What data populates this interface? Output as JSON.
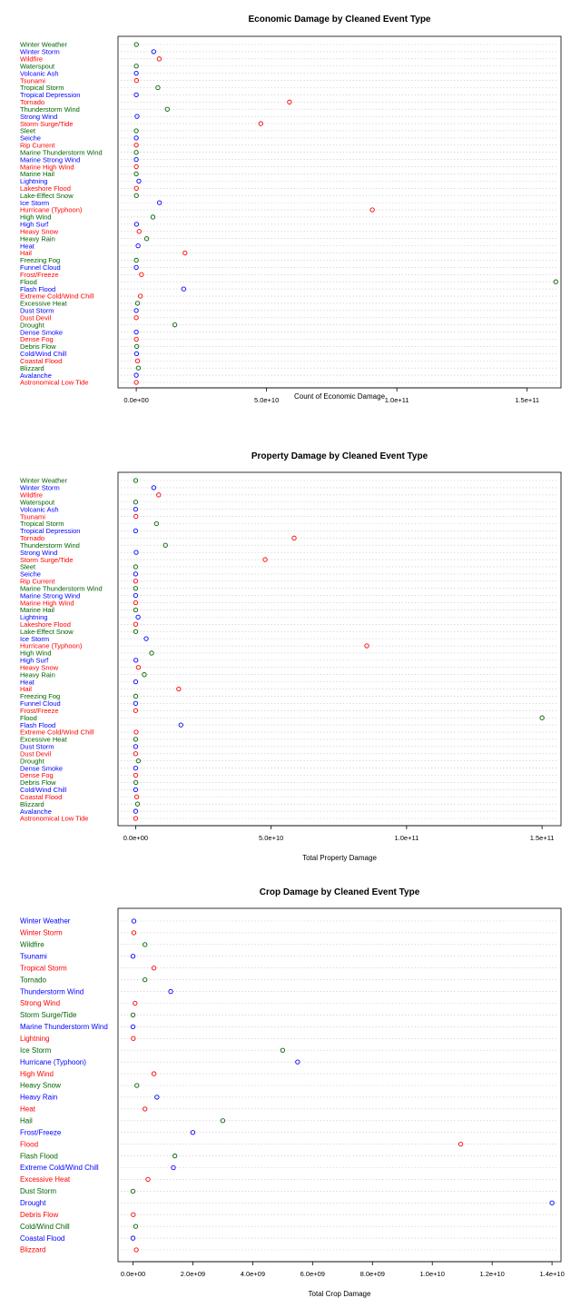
{
  "colors": {
    "green": "#006400",
    "blue": "#0000ff",
    "red": "#ff0000",
    "grid": "#bbbbbb",
    "frame": "#000000"
  },
  "chart_data": [
    {
      "type": "scatter",
      "subtype": "dotchart",
      "title": "Economic Damage by Cleaned Event Type",
      "xlabel": "Count of Economic Damage",
      "ylabel": "",
      "xlim": [
        -7000000000,
        163000000000
      ],
      "xticks": [
        0,
        50000000000,
        100000000000,
        150000000000
      ],
      "xtick_labels": [
        "0.0e+00",
        "5.0e+10",
        "1.0e+11",
        "1.5e+11"
      ],
      "grid": true,
      "legend": "none",
      "label_color_cycle": [
        "green",
        "blue",
        "red"
      ],
      "categories": [
        "Winter Weather",
        "Winter Storm",
        "Wildfire",
        "Waterspout",
        "Volcanic Ash",
        "Tsunami",
        "Tropical Storm",
        "Tropical Depression",
        "Tornado",
        "Thunderstorm Wind",
        "Strong Wind",
        "Storm Surge/Tide",
        "Sleet",
        "Seiche",
        "Rip Current",
        "Marine Thunderstorm Wind",
        "Marine Strong Wind",
        "Marine High Wind",
        "Marine Hail",
        "Lightning",
        "Lakeshore Flood",
        "Lake-Effect Snow",
        "Ice Storm",
        "Hurricane (Typhoon)",
        "High Wind",
        "High Surf",
        "Heavy Snow",
        "Heavy Rain",
        "Heat",
        "Hail",
        "Freezing Fog",
        "Funnel Cloud",
        "Frost/Freeze",
        "Flood",
        "Flash Flood",
        "Extreme Cold/Wind Chill",
        "Excessive Heat",
        "Dust Storm",
        "Dust Devil",
        "Drought",
        "Dense Smoke",
        "Dense Fog",
        "Debris Flow",
        "Cold/Wind Chill",
        "Coastal Flood",
        "Blizzard",
        "Avalanche",
        "Astronomical Low Tide"
      ],
      "values": [
        60000000,
        6700000000,
        8800000000,
        10000000,
        5000000,
        100000000,
        8300000000,
        2000000,
        58800000000,
        11900000000,
        300000000,
        47800000000,
        0,
        2000000,
        200000,
        500000,
        400000,
        1400000,
        100000,
        1000000000,
        50000000,
        40000000,
        8900000000,
        90600000000,
        6400000000,
        100000000,
        1100000000,
        4000000000,
        700000000,
        18700000000,
        22000000,
        100000,
        2000000000,
        161000000000,
        18200000000,
        1600000000,
        500000000,
        9000000,
        6000000,
        14800000000,
        100000,
        22000000,
        200000000,
        100000000,
        500000000,
        800000000,
        9000000,
        10000000
      ]
    },
    {
      "type": "scatter",
      "subtype": "dotchart",
      "title": "Property Damage by Cleaned Event Type",
      "xlabel": "Total Property Damage",
      "ylabel": "",
      "xlim": [
        -6500000000,
        157000000000
      ],
      "xticks": [
        0,
        50000000000,
        100000000000,
        150000000000
      ],
      "xtick_labels": [
        "0.0e+00",
        "5.0e+10",
        "1.0e+11",
        "1.5e+11"
      ],
      "grid": true,
      "legend": "none",
      "label_color_cycle": [
        "green",
        "blue",
        "red"
      ],
      "categories": [
        "Winter Weather",
        "Winter Storm",
        "Wildfire",
        "Waterspout",
        "Volcanic Ash",
        "Tsunami",
        "Tropical Storm",
        "Tropical Depression",
        "Tornado",
        "Thunderstorm Wind",
        "Strong Wind",
        "Storm Surge/Tide",
        "Sleet",
        "Seiche",
        "Rip Current",
        "Marine Thunderstorm Wind",
        "Marine Strong Wind",
        "Marine High Wind",
        "Marine Hail",
        "Lightning",
        "Lakeshore Flood",
        "Lake-Effect Snow",
        "Ice Storm",
        "Hurricane (Typhoon)",
        "High Wind",
        "High Surf",
        "Heavy Snow",
        "Heavy Rain",
        "Heat",
        "Hail",
        "Freezing Fog",
        "Funnel Cloud",
        "Frost/Freeze",
        "Flood",
        "Flash Flood",
        "Extreme Cold/Wind Chill",
        "Excessive Heat",
        "Dust Storm",
        "Dust Devil",
        "Drought",
        "Dense Smoke",
        "Dense Fog",
        "Debris Flow",
        "Cold/Wind Chill",
        "Coastal Flood",
        "Blizzard",
        "Avalanche",
        "Astronomical Low Tide"
      ],
      "values": [
        30000000,
        6700000000,
        8500000000,
        10000000,
        500000,
        100000000,
        7700000000,
        2000000,
        58500000000,
        11000000000,
        200000000,
        47800000000,
        0,
        1000000,
        200000,
        500000,
        400000,
        1400000,
        100000,
        900000000,
        20000000,
        40000000,
        3900000000,
        85300000000,
        5900000000,
        100000000,
        1000000000,
        3200000000,
        20000000,
        15900000000,
        22000000,
        100000,
        10000000,
        150000000000,
        16700000000,
        200000000,
        8000000,
        6000000,
        6000000,
        1000000000,
        100000,
        20000000,
        100000000,
        1000000,
        400000000,
        700000000,
        9000000,
        9000000
      ]
    },
    {
      "type": "scatter",
      "subtype": "dotchart",
      "title": "Crop Damage by Cleaned Event Type",
      "xlabel": "Total Crop Damage",
      "ylabel": "",
      "xlim": [
        -500000000,
        14300000000
      ],
      "xticks": [
        0,
        2000000000,
        4000000000,
        6000000000,
        8000000000,
        10000000000,
        12000000000,
        14000000000
      ],
      "xtick_labels": [
        "0.0e+00",
        "2.0e+09",
        "4.0e+09",
        "6.0e+09",
        "8.0e+09",
        "1.0e+10",
        "1.2e+10",
        "1.4e+10"
      ],
      "grid": true,
      "legend": "none",
      "label_color_cycle": [
        "blue",
        "red",
        "green"
      ],
      "categories": [
        "Winter Weather",
        "Winter Storm",
        "Wildfire",
        "Tsunami",
        "Tropical Storm",
        "Tornado",
        "Thunderstorm Wind",
        "Strong Wind",
        "Storm Surge/Tide",
        "Marine Thunderstorm Wind",
        "Lightning",
        "Ice Storm",
        "Hurricane (Typhoon)",
        "High Wind",
        "Heavy Snow",
        "Heavy Rain",
        "Heat",
        "Hail",
        "Frost/Freeze",
        "Flood",
        "Flash Flood",
        "Extreme Cold/Wind Chill",
        "Excessive Heat",
        "Dust Storm",
        "Drought",
        "Debris Flow",
        "Cold/Wind Chill",
        "Coastal Flood",
        "Blizzard"
      ],
      "values": [
        30000000,
        30000000,
        400000000,
        0,
        700000000,
        400000000,
        1260000000,
        70000000,
        0,
        0,
        10000000,
        5000000000,
        5500000000,
        700000000,
        130000000,
        800000000,
        400000000,
        3000000000,
        2000000000,
        10950000000,
        1400000000,
        1350000000,
        500000000,
        0,
        14000000000,
        10000000,
        90000000,
        0,
        110000000
      ]
    }
  ]
}
